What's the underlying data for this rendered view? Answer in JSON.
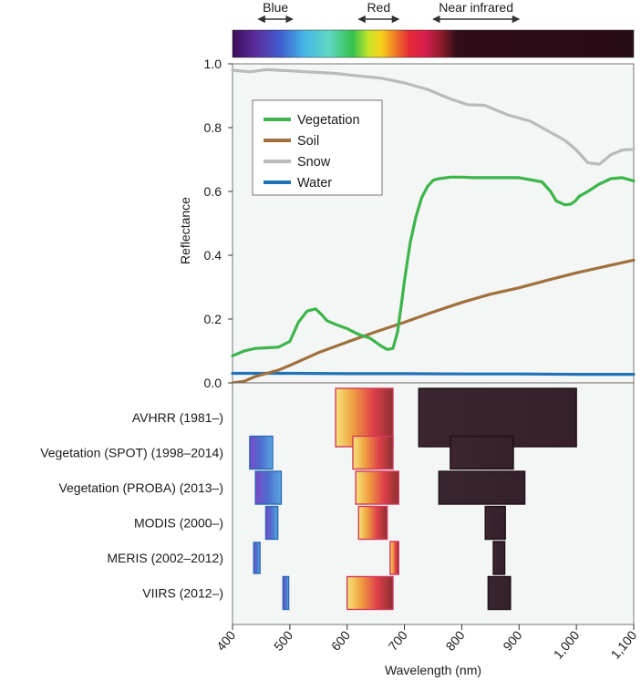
{
  "chart_data": {
    "type": "line",
    "xlabel": "Wavelength (nm)",
    "ylabel": "Reflectance",
    "xlim": [
      400,
      1100
    ],
    "ylim": [
      0,
      1.0
    ],
    "x_ticks": [
      400,
      500,
      600,
      700,
      800,
      900,
      1000,
      1100
    ],
    "x_tick_labels": [
      "400",
      "500",
      "600",
      "700",
      "800",
      "900",
      "1,000",
      "1,100"
    ],
    "y_ticks": [
      0,
      0.2,
      0.4,
      0.6,
      0.8,
      1.0
    ],
    "y_tick_labels": [
      "0.0",
      "0.2",
      "0.4",
      "0.6",
      "0.8",
      "1.0"
    ],
    "legend_position": "upper-left",
    "spectrum_labels": [
      {
        "text": "Blue",
        "from": 445,
        "to": 505
      },
      {
        "text": "Red",
        "from": 620,
        "to": 690
      },
      {
        "text": "Near infrared",
        "from": 750,
        "to": 900
      }
    ],
    "series": [
      {
        "name": "Vegetation",
        "color": "#3bb54a",
        "x": [
          400,
          420,
          440,
          460,
          480,
          500,
          515,
          530,
          545,
          555,
          565,
          580,
          600,
          620,
          640,
          660,
          670,
          680,
          688,
          695,
          700,
          705,
          710,
          720,
          730,
          740,
          750,
          760,
          780,
          800,
          820,
          850,
          900,
          940,
          955,
          965,
          980,
          990,
          998,
          1005,
          1020,
          1040,
          1060,
          1080,
          1100
        ],
        "y": [
          0.085,
          0.1,
          0.108,
          0.11,
          0.112,
          0.13,
          0.19,
          0.225,
          0.232,
          0.215,
          0.195,
          0.183,
          0.17,
          0.152,
          0.14,
          0.115,
          0.105,
          0.108,
          0.16,
          0.25,
          0.32,
          0.38,
          0.44,
          0.52,
          0.58,
          0.615,
          0.635,
          0.64,
          0.645,
          0.645,
          0.643,
          0.643,
          0.643,
          0.63,
          0.6,
          0.57,
          0.558,
          0.56,
          0.57,
          0.585,
          0.6,
          0.623,
          0.64,
          0.643,
          0.633
        ]
      },
      {
        "name": "Soil",
        "color": "#a0703c",
        "x": [
          400,
          420,
          440,
          460,
          480,
          500,
          550,
          600,
          650,
          700,
          750,
          800,
          850,
          900,
          950,
          1000,
          1050,
          1100
        ],
        "y": [
          0.0,
          0.005,
          0.02,
          0.03,
          0.04,
          0.055,
          0.095,
          0.128,
          0.16,
          0.19,
          0.222,
          0.252,
          0.278,
          0.298,
          0.322,
          0.345,
          0.365,
          0.385
        ]
      },
      {
        "name": "Snow",
        "color": "#b8babd",
        "x": [
          400,
          430,
          460,
          480,
          500,
          540,
          580,
          620,
          660,
          700,
          740,
          780,
          810,
          840,
          880,
          920,
          950,
          980,
          1000,
          1010,
          1020,
          1040,
          1060,
          1080,
          1100
        ],
        "y": [
          0.98,
          0.975,
          0.982,
          0.98,
          0.978,
          0.974,
          0.97,
          0.962,
          0.955,
          0.94,
          0.92,
          0.89,
          0.872,
          0.87,
          0.84,
          0.82,
          0.79,
          0.76,
          0.73,
          0.71,
          0.69,
          0.685,
          0.715,
          0.73,
          0.732
        ]
      },
      {
        "name": "Water",
        "color": "#1f72b8",
        "x": [
          400,
          500,
          600,
          700,
          800,
          900,
          1000,
          1100
        ],
        "y": [
          0.03,
          0.03,
          0.029,
          0.029,
          0.028,
          0.028,
          0.027,
          0.027
        ]
      }
    ],
    "sensors": [
      {
        "name": "AVHRR (1981–)",
        "bands": [
          [
            580,
            680
          ],
          [
            725,
            1000
          ]
        ]
      },
      {
        "name": "Vegetation (SPOT) (1998–2014)",
        "bands": [
          [
            430,
            470
          ],
          [
            610,
            680
          ],
          [
            780,
            890
          ]
        ]
      },
      {
        "name": "Vegetation (PROBA) (2013–)",
        "bands": [
          [
            440,
            485
          ],
          [
            615,
            690
          ],
          [
            760,
            910
          ]
        ]
      },
      {
        "name": "MODIS (2000–)",
        "bands": [
          [
            458,
            479
          ],
          [
            620,
            670
          ],
          [
            841,
            876
          ]
        ]
      },
      {
        "name": "MERIS (2002–2012)",
        "bands": [
          [
            437,
            448
          ],
          [
            675,
            690
          ],
          [
            855,
            875
          ]
        ]
      },
      {
        "name": "VIIRS (2012–)",
        "bands": [
          [
            488,
            498
          ],
          [
            600,
            680
          ],
          [
            846,
            885
          ]
        ]
      }
    ]
  }
}
